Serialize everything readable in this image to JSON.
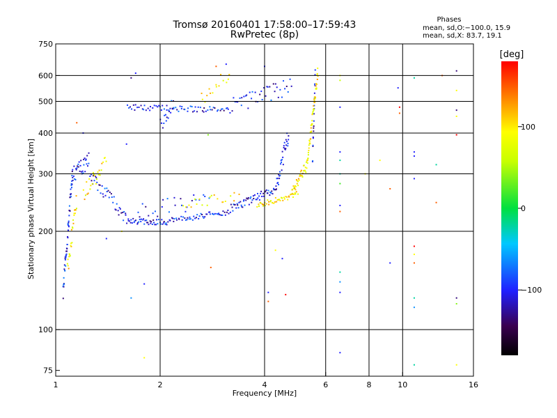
{
  "chart_data": {
    "type": "scatter",
    "title": "Tromsø 20160401 17:58:00–17:59:43",
    "subtitle": "RwPretec (8p)",
    "xlabel": "Frequency [MHz]",
    "ylabel": "Stationary phase Virtual Height [km]",
    "x_scale": "log",
    "y_scale": "log",
    "xlim": [
      1,
      16
    ],
    "ylim": [
      72,
      750
    ],
    "x_ticks": [
      1,
      2,
      4,
      6,
      8,
      10,
      16
    ],
    "x_tick_labels": [
      "1",
      "2",
      "4",
      "6",
      "8",
      "10",
      "16"
    ],
    "y_ticks": [
      75,
      100,
      200,
      300,
      400,
      500,
      600,
      750
    ],
    "y_tick_labels": [
      "75",
      "100",
      "200",
      "300",
      "400",
      "500",
      "600",
      "750"
    ],
    "x_gridlines": [
      2,
      4,
      6,
      8,
      10
    ],
    "y_gridlines": [
      100,
      200,
      300,
      400,
      500,
      600
    ],
    "stats": {
      "heading": "Phases",
      "line_o": "mean, sd,O:−100.0, 15.9",
      "line_x": "mean, sd,X:  83.7, 19.1"
    },
    "colorbar": {
      "label": "[deg]",
      "range": [
        -180,
        180
      ],
      "ticks": [
        100,
        0,
        -100
      ],
      "tick_labels": [
        "100",
        "0",
        "−100"
      ]
    },
    "series": [
      {
        "mode": "O",
        "phase": -100,
        "segments": [
          {
            "x0": 1.05,
            "x1": 1.12,
            "y0": 130,
            "y1": 310,
            "n": 55,
            "spread": 0.06
          },
          {
            "x0": 1.12,
            "x1": 1.25,
            "y0": 300,
            "y1": 330,
            "n": 30,
            "spread": 0.06
          },
          {
            "x0": 1.25,
            "x1": 1.6,
            "y0": 300,
            "y1": 220,
            "n": 40,
            "spread": 0.05
          },
          {
            "x0": 1.6,
            "x1": 2.1,
            "y0": 215,
            "y1": 213,
            "n": 45,
            "spread": 0.02
          },
          {
            "x0": 2.1,
            "x1": 3.2,
            "y0": 215,
            "y1": 230,
            "n": 55,
            "spread": 0.02
          },
          {
            "x0": 3.2,
            "x1": 4.3,
            "y0": 235,
            "y1": 270,
            "n": 55,
            "spread": 0.03
          },
          {
            "x0": 4.3,
            "x1": 4.7,
            "y0": 270,
            "y1": 400,
            "n": 35,
            "spread": 0.06
          },
          {
            "x0": 1.6,
            "x1": 3.2,
            "y0": 480,
            "y1": 470,
            "n": 70,
            "spread": 0.02
          },
          {
            "x0": 3.2,
            "x1": 4.8,
            "y0": 480,
            "y1": 560,
            "n": 40,
            "spread": 0.06
          },
          {
            "x0": 2.0,
            "x1": 2.2,
            "y0": 420,
            "y1": 500,
            "n": 15,
            "spread": 0.05
          },
          {
            "x0": 5.5,
            "x1": 5.6,
            "y0": 330,
            "y1": 620,
            "n": 20,
            "spread": 0.04
          },
          {
            "x0": 1.7,
            "x1": 2.8,
            "y0": 230,
            "y1": 250,
            "n": 25,
            "spread": 0.06
          }
        ]
      },
      {
        "mode": "X",
        "phase": 100,
        "segments": [
          {
            "x0": 1.08,
            "x1": 1.15,
            "y0": 150,
            "y1": 250,
            "n": 25,
            "spread": 0.06
          },
          {
            "x0": 1.2,
            "x1": 1.4,
            "y0": 260,
            "y1": 330,
            "n": 25,
            "spread": 0.06
          },
          {
            "x0": 3.8,
            "x1": 5.0,
            "y0": 240,
            "y1": 260,
            "n": 45,
            "spread": 0.02
          },
          {
            "x0": 4.8,
            "x1": 5.3,
            "y0": 260,
            "y1": 320,
            "n": 35,
            "spread": 0.04
          },
          {
            "x0": 5.3,
            "x1": 5.7,
            "y0": 320,
            "y1": 620,
            "n": 55,
            "spread": 0.04
          },
          {
            "x0": 2.3,
            "x1": 3.4,
            "y0": 240,
            "y1": 260,
            "n": 20,
            "spread": 0.04
          },
          {
            "x0": 2.6,
            "x1": 3.2,
            "y0": 500,
            "y1": 620,
            "n": 15,
            "spread": 0.06
          }
        ]
      }
    ],
    "scatter_points": [
      {
        "x": 6.6,
        "y": 600,
        "phase": 100
      },
      {
        "x": 6.6,
        "y": 580,
        "phase": 60
      },
      {
        "x": 6.6,
        "y": 480,
        "phase": -100
      },
      {
        "x": 6.6,
        "y": 350,
        "phase": -100
      },
      {
        "x": 6.6,
        "y": 330,
        "phase": -20
      },
      {
        "x": 6.6,
        "y": 300,
        "phase": -20
      },
      {
        "x": 6.6,
        "y": 280,
        "phase": 20
      },
      {
        "x": 6.6,
        "y": 240,
        "phase": -100
      },
      {
        "x": 6.6,
        "y": 230,
        "phase": 150
      },
      {
        "x": 6.6,
        "y": 150,
        "phase": -20
      },
      {
        "x": 6.6,
        "y": 140,
        "phase": -60
      },
      {
        "x": 6.6,
        "y": 130,
        "phase": -100
      },
      {
        "x": 6.6,
        "y": 85,
        "phase": -100
      },
      {
        "x": 10.8,
        "y": 590,
        "phase": -20
      },
      {
        "x": 10.8,
        "y": 350,
        "phase": -100
      },
      {
        "x": 10.8,
        "y": 340,
        "phase": -100
      },
      {
        "x": 10.8,
        "y": 290,
        "phase": -100
      },
      {
        "x": 10.8,
        "y": 180,
        "phase": 180
      },
      {
        "x": 10.8,
        "y": 170,
        "phase": 100
      },
      {
        "x": 10.8,
        "y": 160,
        "phase": 150
      },
      {
        "x": 10.8,
        "y": 125,
        "phase": -20
      },
      {
        "x": 10.8,
        "y": 117,
        "phase": -60
      },
      {
        "x": 10.8,
        "y": 78,
        "phase": -20
      },
      {
        "x": 14.3,
        "y": 620,
        "phase": -130
      },
      {
        "x": 14.3,
        "y": 540,
        "phase": 100
      },
      {
        "x": 14.3,
        "y": 470,
        "phase": -130
      },
      {
        "x": 14.3,
        "y": 450,
        "phase": 100
      },
      {
        "x": 14.3,
        "y": 395,
        "phase": 180
      },
      {
        "x": 14.3,
        "y": 125,
        "phase": -130
      },
      {
        "x": 14.3,
        "y": 120,
        "phase": 40
      },
      {
        "x": 14.3,
        "y": 78,
        "phase": 100
      },
      {
        "x": 9.7,
        "y": 550,
        "phase": -100
      },
      {
        "x": 9.8,
        "y": 480,
        "phase": 180
      },
      {
        "x": 9.8,
        "y": 460,
        "phase": 150
      },
      {
        "x": 8.6,
        "y": 330,
        "phase": 100
      },
      {
        "x": 9.2,
        "y": 270,
        "phase": 150
      },
      {
        "x": 9.2,
        "y": 160,
        "phase": -100
      },
      {
        "x": 12.5,
        "y": 320,
        "phase": -20
      },
      {
        "x": 12.5,
        "y": 245,
        "phase": 150
      },
      {
        "x": 13.0,
        "y": 600,
        "phase": 150
      },
      {
        "x": 7.8,
        "y": 300,
        "phase": 100
      },
      {
        "x": 1.65,
        "y": 125,
        "phase": -60
      },
      {
        "x": 1.8,
        "y": 138,
        "phase": -100
      },
      {
        "x": 1.8,
        "y": 82,
        "phase": 100
      },
      {
        "x": 2.8,
        "y": 155,
        "phase": 150
      },
      {
        "x": 4.1,
        "y": 130,
        "phase": -100
      },
      {
        "x": 4.1,
        "y": 122,
        "phase": 150
      },
      {
        "x": 4.3,
        "y": 175,
        "phase": 100
      },
      {
        "x": 4.5,
        "y": 165,
        "phase": -100
      },
      {
        "x": 4.6,
        "y": 128,
        "phase": 180
      },
      {
        "x": 1.6,
        "y": 370,
        "phase": -100
      },
      {
        "x": 1.2,
        "y": 400,
        "phase": -100
      },
      {
        "x": 1.15,
        "y": 430,
        "phase": 150
      },
      {
        "x": 1.7,
        "y": 610,
        "phase": -100
      },
      {
        "x": 1.65,
        "y": 590,
        "phase": -130
      },
      {
        "x": 4.0,
        "y": 640,
        "phase": -100
      },
      {
        "x": 2.9,
        "y": 640,
        "phase": 150
      },
      {
        "x": 3.1,
        "y": 650,
        "phase": -100
      },
      {
        "x": 2.75,
        "y": 395,
        "phase": 40
      },
      {
        "x": 1.4,
        "y": 190,
        "phase": -100
      },
      {
        "x": 1.55,
        "y": 200,
        "phase": 100
      }
    ]
  }
}
